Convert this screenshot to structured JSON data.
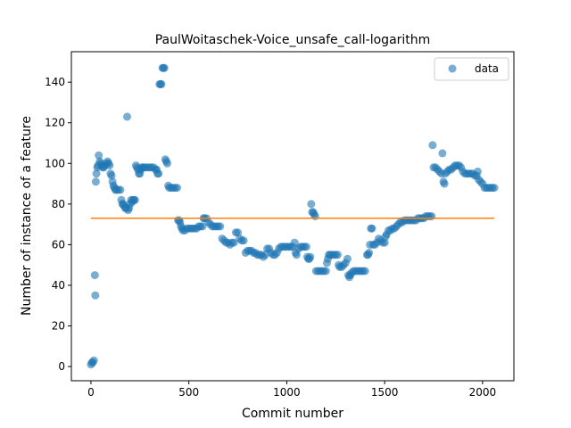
{
  "chart_data": {
    "type": "scatter",
    "title": "PaulWoitaschek-Voice_unsafe_call-logarithm",
    "xlabel": "Commit number",
    "ylabel": "Number of instance of a feature",
    "xlim": [
      -100,
      2160
    ],
    "ylim": [
      -7,
      155
    ],
    "xticks": [
      0,
      500,
      1000,
      1500,
      2000
    ],
    "yticks": [
      0,
      20,
      40,
      60,
      80,
      100,
      120,
      140
    ],
    "legend": {
      "label": "data",
      "placement": "top-right"
    },
    "colors": {
      "points": "#1f77b4",
      "reference_line": "#ff7f0e"
    },
    "reference_line": {
      "x": [
        0,
        2060
      ],
      "y": 73
    },
    "series": [
      {
        "name": "data",
        "points": [
          [
            0,
            1
          ],
          [
            5,
            2
          ],
          [
            10,
            2
          ],
          [
            15,
            3
          ],
          [
            20,
            45
          ],
          [
            22,
            35
          ],
          [
            25,
            91
          ],
          [
            28,
            95
          ],
          [
            32,
            98
          ],
          [
            36,
            99
          ],
          [
            40,
            104
          ],
          [
            45,
            101
          ],
          [
            50,
            100
          ],
          [
            55,
            99
          ],
          [
            60,
            98
          ],
          [
            65,
            98
          ],
          [
            70,
            99
          ],
          [
            80,
            100
          ],
          [
            85,
            101
          ],
          [
            90,
            100
          ],
          [
            95,
            99
          ],
          [
            100,
            95
          ],
          [
            105,
            94
          ],
          [
            110,
            91
          ],
          [
            115,
            89
          ],
          [
            120,
            88
          ],
          [
            125,
            87
          ],
          [
            130,
            87
          ],
          [
            140,
            87
          ],
          [
            150,
            87
          ],
          [
            155,
            82
          ],
          [
            160,
            80
          ],
          [
            165,
            80
          ],
          [
            170,
            79
          ],
          [
            175,
            78
          ],
          [
            180,
            78
          ],
          [
            185,
            123
          ],
          [
            190,
            77
          ],
          [
            195,
            78
          ],
          [
            200,
            80
          ],
          [
            205,
            82
          ],
          [
            210,
            81
          ],
          [
            215,
            82
          ],
          [
            220,
            82
          ],
          [
            225,
            82
          ],
          [
            230,
            99
          ],
          [
            235,
            98
          ],
          [
            240,
            97
          ],
          [
            245,
            95
          ],
          [
            250,
            95
          ],
          [
            255,
            97
          ],
          [
            260,
            98
          ],
          [
            265,
            98
          ],
          [
            270,
            98
          ],
          [
            280,
            98
          ],
          [
            290,
            98
          ],
          [
            300,
            98
          ],
          [
            310,
            98
          ],
          [
            320,
            98
          ],
          [
            330,
            97
          ],
          [
            335,
            97
          ],
          [
            340,
            95
          ],
          [
            345,
            95
          ],
          [
            350,
            139
          ],
          [
            355,
            139
          ],
          [
            360,
            139
          ],
          [
            365,
            147
          ],
          [
            370,
            147
          ],
          [
            375,
            147
          ],
          [
            380,
            102
          ],
          [
            385,
            101
          ],
          [
            390,
            100
          ],
          [
            395,
            89
          ],
          [
            400,
            88
          ],
          [
            410,
            88
          ],
          [
            420,
            88
          ],
          [
            430,
            88
          ],
          [
            440,
            88
          ],
          [
            445,
            72
          ],
          [
            450,
            72
          ],
          [
            455,
            71
          ],
          [
            460,
            69
          ],
          [
            465,
            68
          ],
          [
            470,
            67
          ],
          [
            480,
            67
          ],
          [
            490,
            68
          ],
          [
            500,
            68
          ],
          [
            510,
            68
          ],
          [
            520,
            68
          ],
          [
            530,
            68
          ],
          [
            540,
            68
          ],
          [
            550,
            69
          ],
          [
            560,
            69
          ],
          [
            570,
            69
          ],
          [
            575,
            73
          ],
          [
            580,
            73
          ],
          [
            590,
            73
          ],
          [
            600,
            71
          ],
          [
            610,
            70
          ],
          [
            620,
            69
          ],
          [
            630,
            69
          ],
          [
            640,
            69
          ],
          [
            650,
            69
          ],
          [
            660,
            69
          ],
          [
            670,
            63
          ],
          [
            680,
            62
          ],
          [
            690,
            61
          ],
          [
            700,
            61
          ],
          [
            710,
            60
          ],
          [
            720,
            61
          ],
          [
            730,
            61
          ],
          [
            740,
            66
          ],
          [
            750,
            66
          ],
          [
            760,
            63
          ],
          [
            770,
            62
          ],
          [
            780,
            62
          ],
          [
            790,
            56
          ],
          [
            800,
            57
          ],
          [
            810,
            57
          ],
          [
            820,
            57
          ],
          [
            830,
            56
          ],
          [
            840,
            56
          ],
          [
            850,
            55
          ],
          [
            860,
            55
          ],
          [
            870,
            55
          ],
          [
            880,
            54
          ],
          [
            890,
            55
          ],
          [
            900,
            58
          ],
          [
            910,
            58
          ],
          [
            920,
            56
          ],
          [
            930,
            55
          ],
          [
            940,
            55
          ],
          [
            950,
            56
          ],
          [
            960,
            58
          ],
          [
            970,
            59
          ],
          [
            980,
            59
          ],
          [
            990,
            59
          ],
          [
            1000,
            59
          ],
          [
            1010,
            59
          ],
          [
            1020,
            59
          ],
          [
            1030,
            59
          ],
          [
            1040,
            61
          ],
          [
            1045,
            56
          ],
          [
            1050,
            55
          ],
          [
            1060,
            58
          ],
          [
            1070,
            59
          ],
          [
            1080,
            59
          ],
          [
            1090,
            59
          ],
          [
            1100,
            59
          ],
          [
            1105,
            54
          ],
          [
            1110,
            53
          ],
          [
            1115,
            53
          ],
          [
            1120,
            54
          ],
          [
            1125,
            80
          ],
          [
            1130,
            76
          ],
          [
            1135,
            76
          ],
          [
            1140,
            75
          ],
          [
            1145,
            74
          ],
          [
            1150,
            47
          ],
          [
            1160,
            47
          ],
          [
            1170,
            47
          ],
          [
            1180,
            47
          ],
          [
            1190,
            47
          ],
          [
            1200,
            47
          ],
          [
            1205,
            51
          ],
          [
            1210,
            53
          ],
          [
            1215,
            55
          ],
          [
            1220,
            55
          ],
          [
            1230,
            55
          ],
          [
            1240,
            55
          ],
          [
            1250,
            55
          ],
          [
            1260,
            55
          ],
          [
            1265,
            50
          ],
          [
            1270,
            49
          ],
          [
            1280,
            49
          ],
          [
            1290,
            50
          ],
          [
            1300,
            51
          ],
          [
            1310,
            53
          ],
          [
            1315,
            45
          ],
          [
            1320,
            44
          ],
          [
            1325,
            45
          ],
          [
            1330,
            46
          ],
          [
            1340,
            47
          ],
          [
            1350,
            47
          ],
          [
            1360,
            47
          ],
          [
            1370,
            47
          ],
          [
            1380,
            47
          ],
          [
            1390,
            47
          ],
          [
            1400,
            47
          ],
          [
            1410,
            55
          ],
          [
            1415,
            55
          ],
          [
            1420,
            56
          ],
          [
            1425,
            60
          ],
          [
            1430,
            68
          ],
          [
            1435,
            68
          ],
          [
            1440,
            60
          ],
          [
            1450,
            60
          ],
          [
            1460,
            61
          ],
          [
            1470,
            63
          ],
          [
            1480,
            62
          ],
          [
            1490,
            61
          ],
          [
            1500,
            61
          ],
          [
            1505,
            64
          ],
          [
            1510,
            65
          ],
          [
            1520,
            67
          ],
          [
            1530,
            67
          ],
          [
            1540,
            68
          ],
          [
            1550,
            68
          ],
          [
            1560,
            69
          ],
          [
            1570,
            70
          ],
          [
            1580,
            71
          ],
          [
            1590,
            71
          ],
          [
            1600,
            72
          ],
          [
            1610,
            72
          ],
          [
            1620,
            72
          ],
          [
            1630,
            72
          ],
          [
            1640,
            72
          ],
          [
            1650,
            72
          ],
          [
            1660,
            72
          ],
          [
            1670,
            73
          ],
          [
            1680,
            73
          ],
          [
            1690,
            73
          ],
          [
            1700,
            73
          ],
          [
            1710,
            74
          ],
          [
            1720,
            74
          ],
          [
            1730,
            74
          ],
          [
            1740,
            74
          ],
          [
            1745,
            109
          ],
          [
            1750,
            98
          ],
          [
            1760,
            98
          ],
          [
            1770,
            97
          ],
          [
            1780,
            96
          ],
          [
            1790,
            95
          ],
          [
            1795,
            105
          ],
          [
            1800,
            91
          ],
          [
            1805,
            90
          ],
          [
            1810,
            95
          ],
          [
            1820,
            96
          ],
          [
            1830,
            97
          ],
          [
            1840,
            97
          ],
          [
            1850,
            98
          ],
          [
            1860,
            99
          ],
          [
            1870,
            99
          ],
          [
            1880,
            99
          ],
          [
            1890,
            98
          ],
          [
            1900,
            96
          ],
          [
            1910,
            95
          ],
          [
            1920,
            95
          ],
          [
            1930,
            95
          ],
          [
            1940,
            95
          ],
          [
            1950,
            95
          ],
          [
            1960,
            94
          ],
          [
            1970,
            94
          ],
          [
            1975,
            96
          ],
          [
            1980,
            92
          ],
          [
            1990,
            91
          ],
          [
            2000,
            90
          ],
          [
            2010,
            88
          ],
          [
            2020,
            88
          ],
          [
            2030,
            88
          ],
          [
            2040,
            88
          ],
          [
            2050,
            88
          ],
          [
            2060,
            88
          ]
        ]
      }
    ]
  }
}
